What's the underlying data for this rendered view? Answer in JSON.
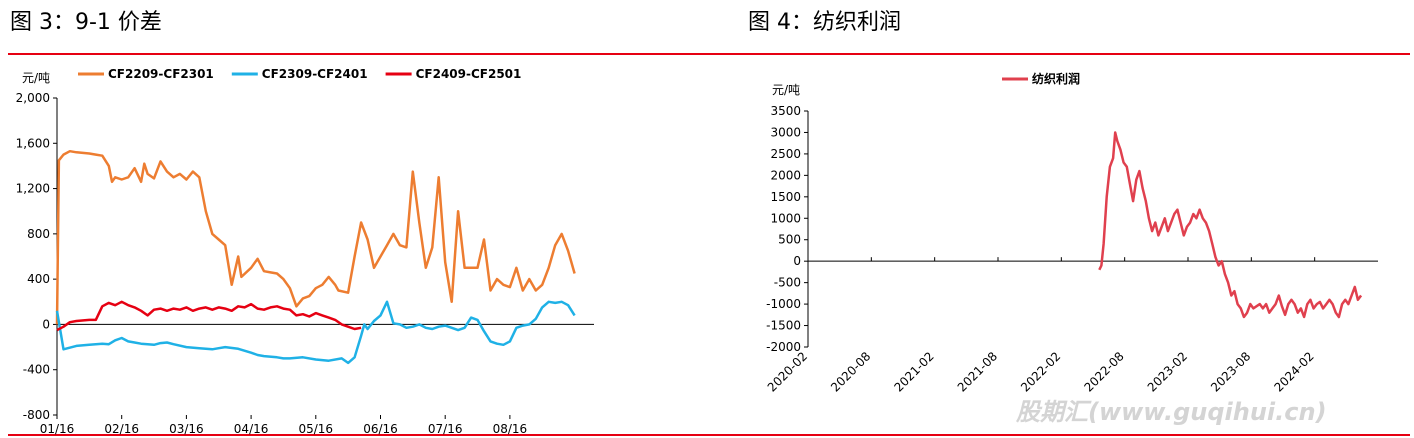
{
  "left_title": "图 3：9-1 价差",
  "right_title": "图 4：纺织利润",
  "watermark": "股期汇(www.guqihui.cn)",
  "chart_data": [
    {
      "type": "line",
      "title": "",
      "ylabel": "元/吨",
      "ylim": [
        -800,
        2000
      ],
      "yticks": [
        2000,
        1600,
        1200,
        800,
        400,
        0,
        -400,
        -800
      ],
      "ytick_labels": [
        "2,000",
        "1,600",
        "1,200",
        "800",
        "400",
        "0",
        "-400",
        "-800"
      ],
      "xlim": [
        0,
        8.3
      ],
      "xticks": [
        0,
        1,
        2,
        3,
        4,
        5,
        6,
        7
      ],
      "xtick_labels": [
        "01/16",
        "02/16",
        "03/16",
        "04/16",
        "05/16",
        "06/16",
        "07/16",
        "08/16"
      ],
      "legend_position": "top",
      "series": [
        {
          "name": "CF2209-CF2301",
          "color": "#ed7d31",
          "x": [
            0.0,
            0.03,
            0.1,
            0.2,
            0.3,
            0.5,
            0.6,
            0.7,
            0.8,
            0.85,
            0.9,
            1.0,
            1.1,
            1.2,
            1.3,
            1.35,
            1.4,
            1.5,
            1.6,
            1.7,
            1.8,
            1.9,
            2.0,
            2.1,
            2.2,
            2.3,
            2.4,
            2.5,
            2.6,
            2.7,
            2.8,
            2.85,
            3.0,
            3.1,
            3.2,
            3.3,
            3.4,
            3.5,
            3.6,
            3.7,
            3.8,
            3.9,
            4.0,
            4.1,
            4.2,
            4.3,
            4.35,
            4.5,
            4.6,
            4.7,
            4.8,
            4.9,
            5.0,
            5.1,
            5.2,
            5.3,
            5.4,
            5.5,
            5.6,
            5.7,
            5.8,
            5.9,
            6.0,
            6.1,
            6.2,
            6.3,
            6.4,
            6.5,
            6.6,
            6.7,
            6.8,
            6.9,
            7.0,
            7.1,
            7.2,
            7.3,
            7.4,
            7.5,
            7.6,
            7.7,
            7.8,
            7.9,
            8.0
          ],
          "values": [
            0,
            1450,
            1500,
            1530,
            1520,
            1510,
            1500,
            1490,
            1400,
            1260,
            1300,
            1280,
            1300,
            1380,
            1260,
            1420,
            1330,
            1290,
            1440,
            1350,
            1300,
            1330,
            1280,
            1350,
            1300,
            1000,
            800,
            750,
            700,
            350,
            600,
            420,
            500,
            580,
            470,
            460,
            450,
            400,
            320,
            160,
            230,
            250,
            320,
            350,
            420,
            350,
            300,
            280,
            600,
            900,
            750,
            500,
            600,
            700,
            800,
            700,
            680,
            1350,
            900,
            500,
            680,
            1300,
            550,
            200,
            1000,
            500,
            500,
            500,
            750,
            300,
            400,
            350,
            330,
            500,
            300,
            400,
            300,
            350,
            500,
            700,
            800,
            650,
            450
          ]
        },
        {
          "name": "CF2309-CF2401",
          "color": "#1fb1e6",
          "x": [
            0.0,
            0.1,
            0.3,
            0.5,
            0.7,
            0.8,
            0.9,
            1.0,
            1.1,
            1.2,
            1.3,
            1.4,
            1.5,
            1.6,
            1.7,
            1.8,
            2.0,
            2.2,
            2.4,
            2.5,
            2.6,
            2.8,
            3.0,
            3.1,
            3.2,
            3.4,
            3.5,
            3.6,
            3.8,
            4.0,
            4.2,
            4.4,
            4.5,
            4.6,
            4.7,
            4.75,
            4.8,
            4.9,
            5.0,
            5.1,
            5.2,
            5.3,
            5.4,
            5.5,
            5.6,
            5.7,
            5.8,
            5.9,
            6.0,
            6.1,
            6.2,
            6.3,
            6.4,
            6.5,
            6.6,
            6.7,
            6.8,
            6.9,
            7.0,
            7.1,
            7.2,
            7.3,
            7.4,
            7.5,
            7.6,
            7.7,
            7.8,
            7.9,
            8.0
          ],
          "values": [
            120,
            -220,
            -190,
            -180,
            -170,
            -175,
            -140,
            -120,
            -150,
            -160,
            -170,
            -175,
            -180,
            -165,
            -160,
            -175,
            -200,
            -210,
            -220,
            -210,
            -200,
            -215,
            -250,
            -270,
            -280,
            -290,
            -300,
            -300,
            -290,
            -310,
            -320,
            -300,
            -340,
            -290,
            -100,
            0,
            -40,
            30,
            80,
            200,
            10,
            0,
            -30,
            -20,
            0,
            -30,
            -40,
            -20,
            -10,
            -30,
            -50,
            -30,
            60,
            40,
            -60,
            -150,
            -170,
            -180,
            -150,
            -30,
            -10,
            0,
            50,
            150,
            200,
            190,
            200,
            170,
            80
          ]
        },
        {
          "name": "CF2409-CF2501",
          "color": "#e60012",
          "x": [
            0.0,
            0.1,
            0.2,
            0.3,
            0.5,
            0.6,
            0.7,
            0.8,
            0.9,
            1.0,
            1.1,
            1.2,
            1.3,
            1.4,
            1.5,
            1.6,
            1.7,
            1.8,
            1.9,
            2.0,
            2.1,
            2.2,
            2.3,
            2.4,
            2.5,
            2.6,
            2.7,
            2.8,
            2.9,
            3.0,
            3.1,
            3.2,
            3.3,
            3.4,
            3.5,
            3.6,
            3.7,
            3.8,
            3.9,
            4.0,
            4.1,
            4.2,
            4.3,
            4.4,
            4.5,
            4.6,
            4.7
          ],
          "values": [
            -50,
            -20,
            20,
            30,
            40,
            40,
            160,
            190,
            170,
            200,
            170,
            150,
            120,
            80,
            130,
            140,
            120,
            140,
            130,
            150,
            120,
            140,
            150,
            130,
            150,
            140,
            120,
            160,
            150,
            180,
            140,
            130,
            150,
            160,
            140,
            130,
            80,
            90,
            70,
            100,
            80,
            60,
            40,
            0,
            -20,
            -40,
            -30
          ]
        }
      ]
    },
    {
      "type": "line",
      "title": "",
      "ylabel": "元/吨",
      "ylim": [
        -2000,
        3500
      ],
      "yticks": [
        3500,
        3000,
        2500,
        2000,
        1500,
        1000,
        500,
        0,
        -500,
        -1000,
        -1500,
        -2000
      ],
      "ytick_labels": [
        "3500",
        "3000",
        "2500",
        "2000",
        "1500",
        "1000",
        "500",
        "0",
        "-500",
        "-1000",
        "-1500",
        "-2000"
      ],
      "xlim": [
        0,
        54
      ],
      "xticks": [
        0,
        6,
        12,
        18,
        24,
        30,
        36,
        42,
        48
      ],
      "xtick_labels": [
        "2020-02",
        "2020-08",
        "2021-02",
        "2021-08",
        "2022-02",
        "2022-08",
        "2023-02",
        "2023-08",
        "2024-02"
      ],
      "legend_position": "top",
      "series": [
        {
          "name": "纺织利润",
          "color": "#e0404e",
          "x": [
            27.6,
            27.8,
            28.0,
            28.3,
            28.6,
            28.9,
            29.1,
            29.3,
            29.6,
            29.9,
            30.2,
            30.5,
            30.8,
            31.1,
            31.4,
            31.7,
            32.0,
            32.3,
            32.6,
            32.9,
            33.2,
            33.5,
            33.8,
            34.1,
            34.4,
            34.7,
            35.0,
            35.3,
            35.6,
            35.9,
            36.2,
            36.5,
            36.8,
            37.1,
            37.4,
            37.7,
            38.0,
            38.3,
            38.6,
            38.9,
            39.2,
            39.5,
            39.8,
            40.1,
            40.4,
            40.7,
            41.0,
            41.3,
            41.6,
            41.9,
            42.2,
            42.5,
            42.8,
            43.1,
            43.4,
            43.7,
            44.0,
            44.3,
            44.6,
            44.9,
            45.2,
            45.5,
            45.8,
            46.1,
            46.4,
            46.7,
            47.0,
            47.3,
            47.6,
            47.9,
            48.2,
            48.5,
            48.8,
            49.1,
            49.4,
            49.7,
            50.0,
            50.3,
            50.6,
            50.9,
            51.2,
            51.5,
            51.8,
            52.1,
            52.4
          ],
          "values": [
            -200,
            -100,
            400,
            1500,
            2200,
            2400,
            3000,
            2800,
            2600,
            2300,
            2200,
            1800,
            1400,
            1900,
            2100,
            1700,
            1400,
            1000,
            700,
            900,
            600,
            800,
            1000,
            700,
            900,
            1100,
            1200,
            900,
            600,
            800,
            900,
            1100,
            1000,
            1200,
            1000,
            900,
            700,
            400,
            100,
            -100,
            0,
            -300,
            -500,
            -800,
            -700,
            -1000,
            -1100,
            -1300,
            -1200,
            -1000,
            -1100,
            -1050,
            -1000,
            -1100,
            -1000,
            -1200,
            -1100,
            -1000,
            -800,
            -1050,
            -1250,
            -1000,
            -900,
            -1000,
            -1200,
            -1100,
            -1300,
            -1000,
            -900,
            -1100,
            -1000,
            -950,
            -1100,
            -1000,
            -900,
            -1000,
            -1200,
            -1300,
            -1000,
            -900,
            -1000,
            -800,
            -600,
            -900,
            -800
          ]
        }
      ]
    }
  ]
}
